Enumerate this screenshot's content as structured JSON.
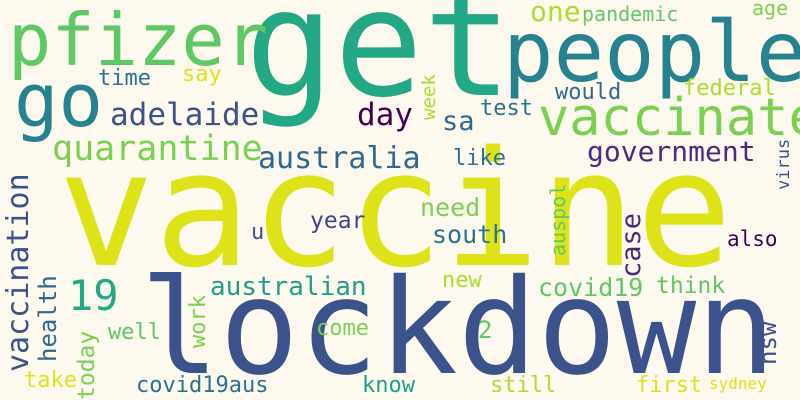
{
  "colors": {
    "background": "#fdf9ef",
    "yellow": "#dde318",
    "lime": "#addc30",
    "light_green": "#7ad151",
    "green": "#5ec962",
    "teal_green": "#22a884",
    "teal": "#1f9e89",
    "blue_teal": "#26828e",
    "steel_blue": "#2c728e",
    "blue": "#31688e",
    "indigo": "#3b528b",
    "dark_indigo": "#414487",
    "purple": "#472d7b",
    "dark_purple": "#440154"
  },
  "words": {
    "get": "get",
    "vaccine": "vaccine",
    "lockdown": "lockdown",
    "people": "people",
    "pfizer": "pfizer",
    "go": "go",
    "vaccinate": "vaccinate",
    "quarantine": "quarantine",
    "australia": "australia",
    "government": "government",
    "vaccination": "vaccination",
    "adelaide": "adelaide",
    "day": "day",
    "sa": "sa",
    "test": "test",
    "would": "would",
    "federal": "federal",
    "one": "one",
    "pandemic": "pandemic",
    "age": "age",
    "time": "time",
    "say": "say",
    "week": "week",
    "like": "like",
    "case": "case",
    "need": "need",
    "south": "south",
    "year": "year",
    "u": "u",
    "also": "also",
    "virus": "virus",
    "auspol": "auspol",
    "n19": "19",
    "health": "health",
    "australian": "australian",
    "covid19": "covid19",
    "think": "think",
    "new": "new",
    "work": "work",
    "well": "well",
    "come": "come",
    "n2": "2",
    "nsw": "nsw",
    "today": "today",
    "take": "take",
    "covid19aus": "covid19aus",
    "know": "know",
    "still": "still",
    "first": "first",
    "sydney": "sydney"
  }
}
